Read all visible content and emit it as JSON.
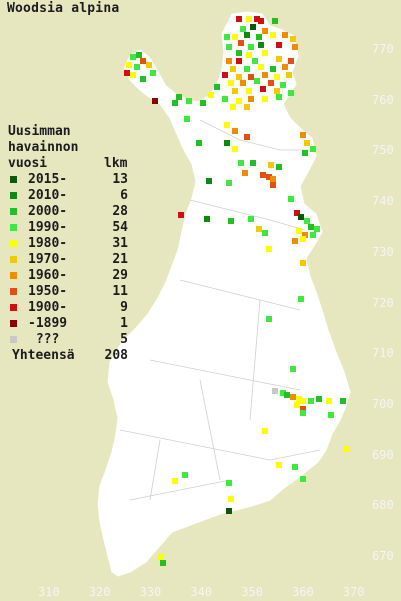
{
  "title": "Woodsia alpina",
  "legend": {
    "header_line1": "Uusimman",
    "header_line2": "havainnon",
    "header_line3_left": "vuosi",
    "header_line3_right": "lkm",
    "rows": [
      {
        "label": "2015-",
        "count": "13",
        "color": "#0a5a0a"
      },
      {
        "label": "2010-",
        "count": "6",
        "color": "#0f8a0f"
      },
      {
        "label": "2000-",
        "count": "28",
        "color": "#22c022"
      },
      {
        "label": "1990-",
        "count": "54",
        "color": "#3ee83e"
      },
      {
        "label": "1980-",
        "count": "31",
        "color": "#ffff00"
      },
      {
        "label": "1970-",
        "count": "21",
        "color": "#f5c800"
      },
      {
        "label": "1960-",
        "count": "29",
        "color": "#f08c00"
      },
      {
        "label": "1950-",
        "count": "11",
        "color": "#e05010"
      },
      {
        "label": "1900-",
        "count": "9",
        "color": "#d01010"
      },
      {
        "label": "-1899",
        "count": "1",
        "color": "#8a0000"
      },
      {
        "label": " ???",
        "count": "5",
        "color": "#c8c8c8"
      }
    ],
    "total_label": "Yhteensä",
    "total_count": "208"
  },
  "axes": {
    "y_labels": [
      "770",
      "760",
      "750",
      "740",
      "730",
      "720",
      "710",
      "700",
      "690",
      "680",
      "670"
    ],
    "x_labels": [
      "310",
      "320",
      "330",
      "340",
      "350",
      "360",
      "370"
    ]
  },
  "colors": {
    "background": "#e6e6bf",
    "land": "#ffffff",
    "borders": "#c8c8c8"
  }
}
